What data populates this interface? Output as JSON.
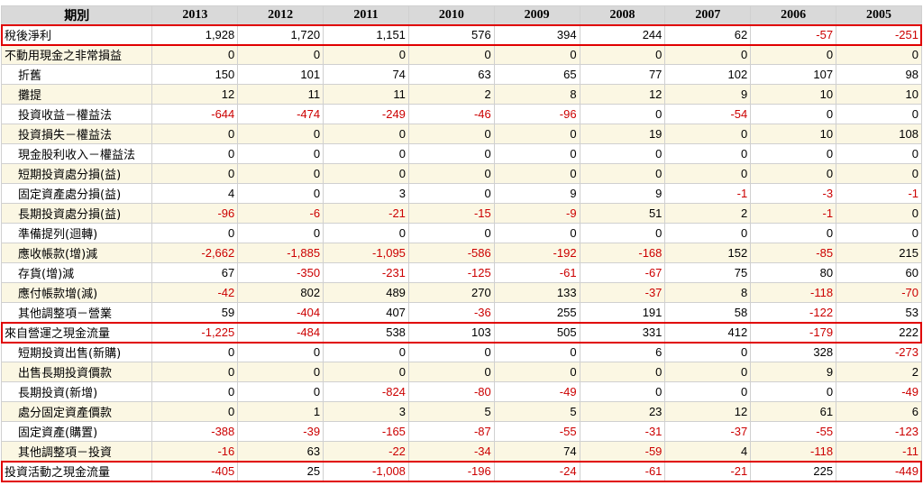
{
  "table": {
    "header": [
      "期別",
      "2013",
      "2012",
      "2011",
      "2010",
      "2009",
      "2008",
      "2007",
      "2006",
      "2005"
    ],
    "rows": [
      {
        "label": "稅後淨利",
        "indent": false,
        "highlight": true,
        "values": [
          "1,928",
          "1,720",
          "1,151",
          "576",
          "394",
          "244",
          "62",
          "-57",
          "-251"
        ]
      },
      {
        "label": "不動用現金之非常損益",
        "indent": false,
        "highlight": false,
        "values": [
          "0",
          "0",
          "0",
          "0",
          "0",
          "0",
          "0",
          "0",
          "0"
        ]
      },
      {
        "label": "折舊",
        "indent": true,
        "highlight": false,
        "values": [
          "150",
          "101",
          "74",
          "63",
          "65",
          "77",
          "102",
          "107",
          "98"
        ]
      },
      {
        "label": "攤提",
        "indent": true,
        "highlight": false,
        "values": [
          "12",
          "11",
          "11",
          "2",
          "8",
          "12",
          "9",
          "10",
          "10"
        ]
      },
      {
        "label": "投資收益－權益法",
        "indent": true,
        "highlight": false,
        "values": [
          "-644",
          "-474",
          "-249",
          "-46",
          "-96",
          "0",
          "-54",
          "0",
          "0"
        ]
      },
      {
        "label": "投資損失－權益法",
        "indent": true,
        "highlight": false,
        "values": [
          "0",
          "0",
          "0",
          "0",
          "0",
          "19",
          "0",
          "10",
          "108"
        ]
      },
      {
        "label": "現金股利收入－權益法",
        "indent": true,
        "highlight": false,
        "values": [
          "0",
          "0",
          "0",
          "0",
          "0",
          "0",
          "0",
          "0",
          "0"
        ]
      },
      {
        "label": "短期投資處分損(益)",
        "indent": true,
        "highlight": false,
        "values": [
          "0",
          "0",
          "0",
          "0",
          "0",
          "0",
          "0",
          "0",
          "0"
        ]
      },
      {
        "label": "固定資產處分損(益)",
        "indent": true,
        "highlight": false,
        "values": [
          "4",
          "0",
          "3",
          "0",
          "9",
          "9",
          "-1",
          "-3",
          "-1"
        ]
      },
      {
        "label": "長期投資處分損(益)",
        "indent": true,
        "highlight": false,
        "values": [
          "-96",
          "-6",
          "-21",
          "-15",
          "-9",
          "51",
          "2",
          "-1",
          "0"
        ]
      },
      {
        "label": "準備提列(迴轉)",
        "indent": true,
        "highlight": false,
        "values": [
          "0",
          "0",
          "0",
          "0",
          "0",
          "0",
          "0",
          "0",
          "0"
        ]
      },
      {
        "label": "應收帳款(增)減",
        "indent": true,
        "highlight": false,
        "values": [
          "-2,662",
          "-1,885",
          "-1,095",
          "-586",
          "-192",
          "-168",
          "152",
          "-85",
          "215"
        ]
      },
      {
        "label": "存貨(增)減",
        "indent": true,
        "highlight": false,
        "values": [
          "67",
          "-350",
          "-231",
          "-125",
          "-61",
          "-67",
          "75",
          "80",
          "60"
        ]
      },
      {
        "label": "應付帳款增(減)",
        "indent": true,
        "highlight": false,
        "values": [
          "-42",
          "802",
          "489",
          "270",
          "133",
          "-37",
          "8",
          "-118",
          "-70"
        ]
      },
      {
        "label": "其他調整項－營業",
        "indent": true,
        "highlight": false,
        "values": [
          "59",
          "-404",
          "407",
          "-36",
          "255",
          "191",
          "58",
          "-122",
          "53"
        ]
      },
      {
        "label": "來自營運之現金流量",
        "indent": false,
        "highlight": true,
        "values": [
          "-1,225",
          "-484",
          "538",
          "103",
          "505",
          "331",
          "412",
          "-179",
          "222"
        ]
      },
      {
        "label": "短期投資出售(新購)",
        "indent": true,
        "highlight": false,
        "values": [
          "0",
          "0",
          "0",
          "0",
          "0",
          "6",
          "0",
          "328",
          "-273"
        ]
      },
      {
        "label": "出售長期投資價款",
        "indent": true,
        "highlight": false,
        "values": [
          "0",
          "0",
          "0",
          "0",
          "0",
          "0",
          "0",
          "9",
          "2"
        ]
      },
      {
        "label": "長期投資(新增)",
        "indent": true,
        "highlight": false,
        "values": [
          "0",
          "0",
          "-824",
          "-80",
          "-49",
          "0",
          "0",
          "0",
          "-49"
        ]
      },
      {
        "label": "處分固定資產價款",
        "indent": true,
        "highlight": false,
        "values": [
          "0",
          "1",
          "3",
          "5",
          "5",
          "23",
          "12",
          "61",
          "6"
        ]
      },
      {
        "label": "固定資產(購置)",
        "indent": true,
        "highlight": false,
        "values": [
          "-388",
          "-39",
          "-165",
          "-87",
          "-55",
          "-31",
          "-37",
          "-55",
          "-123"
        ]
      },
      {
        "label": "其他調整項－投資",
        "indent": true,
        "highlight": false,
        "values": [
          "-16",
          "63",
          "-22",
          "-34",
          "74",
          "-59",
          "4",
          "-118",
          "-11"
        ]
      },
      {
        "label": "投資活動之現金流量",
        "indent": false,
        "highlight": true,
        "values": [
          "-405",
          "25",
          "-1,008",
          "-196",
          "-24",
          "-61",
          "-21",
          "225",
          "-449"
        ]
      }
    ]
  },
  "colors": {
    "negative": "#cc0000",
    "positive": "#000000",
    "highlight_border": "#e00000",
    "row_alt": "#fbf7e3",
    "header_bg": "#d9d9d9"
  }
}
